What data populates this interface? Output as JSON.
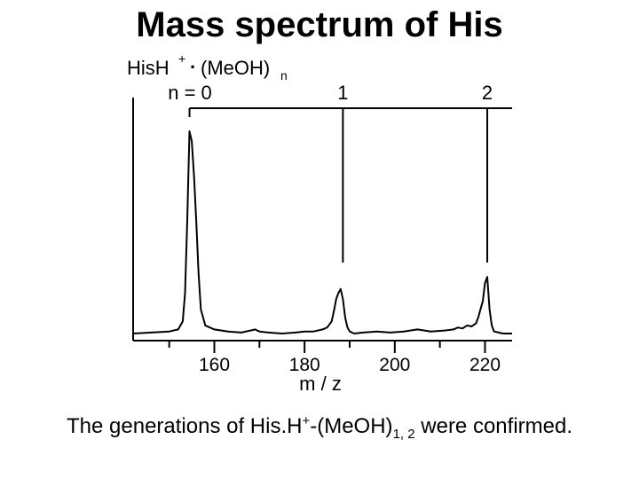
{
  "slide": {
    "title": "Mass spectrum of His",
    "caption": {
      "prefix": "The generations of His.H",
      "plus": "+",
      "middle": "-(MeOH)",
      "subscript": "1, 2",
      "suffix": " were confirmed."
    }
  },
  "chart_data": {
    "type": "line",
    "xlabel": "m / z",
    "ylabel": "",
    "xlim": [
      142,
      226
    ],
    "ylim": [
      0,
      1.0
    ],
    "xticks_major": [
      160,
      180,
      200,
      220
    ],
    "xticks_minor": [
      150,
      170,
      190,
      210
    ],
    "grid": false,
    "species_label": {
      "base": "HisH",
      "charge": "+",
      "dot": "·",
      "solvent": "(MeOH)",
      "subscript": "n"
    },
    "assignments": [
      {
        "label": "n = 0",
        "mz": 154.5
      },
      {
        "label": "1",
        "mz": 188.5
      },
      {
        "label": "2",
        "mz": 220.5
      }
    ],
    "series": [
      {
        "x": [
          142,
          146,
          150,
          152,
          153,
          153.5,
          154,
          154.5,
          155,
          155.5,
          156,
          156.5,
          157,
          158,
          160,
          163,
          166,
          168,
          169,
          170,
          172,
          175,
          178,
          180,
          182,
          184,
          185,
          186,
          186.5,
          187,
          187.5,
          188,
          188.5,
          189,
          189.5,
          190,
          191,
          193,
          196,
          199,
          202,
          205,
          208,
          211,
          213,
          214,
          215,
          216,
          217,
          218,
          218.5,
          219,
          219.5,
          220,
          220.5,
          221,
          221.5,
          222,
          223,
          224,
          225,
          226
        ],
        "y": [
          0.0,
          0.005,
          0.01,
          0.02,
          0.06,
          0.2,
          0.56,
          1.0,
          0.95,
          0.78,
          0.55,
          0.3,
          0.12,
          0.04,
          0.02,
          0.01,
          0.005,
          0.015,
          0.02,
          0.01,
          0.005,
          0.0,
          0.005,
          0.01,
          0.01,
          0.02,
          0.03,
          0.06,
          0.11,
          0.17,
          0.2,
          0.22,
          0.17,
          0.08,
          0.03,
          0.01,
          0.0,
          0.005,
          0.01,
          0.005,
          0.01,
          0.02,
          0.01,
          0.015,
          0.02,
          0.03,
          0.025,
          0.04,
          0.035,
          0.05,
          0.08,
          0.12,
          0.16,
          0.25,
          0.28,
          0.12,
          0.04,
          0.01,
          0.005,
          0.0,
          0.0,
          0.0
        ]
      }
    ]
  }
}
